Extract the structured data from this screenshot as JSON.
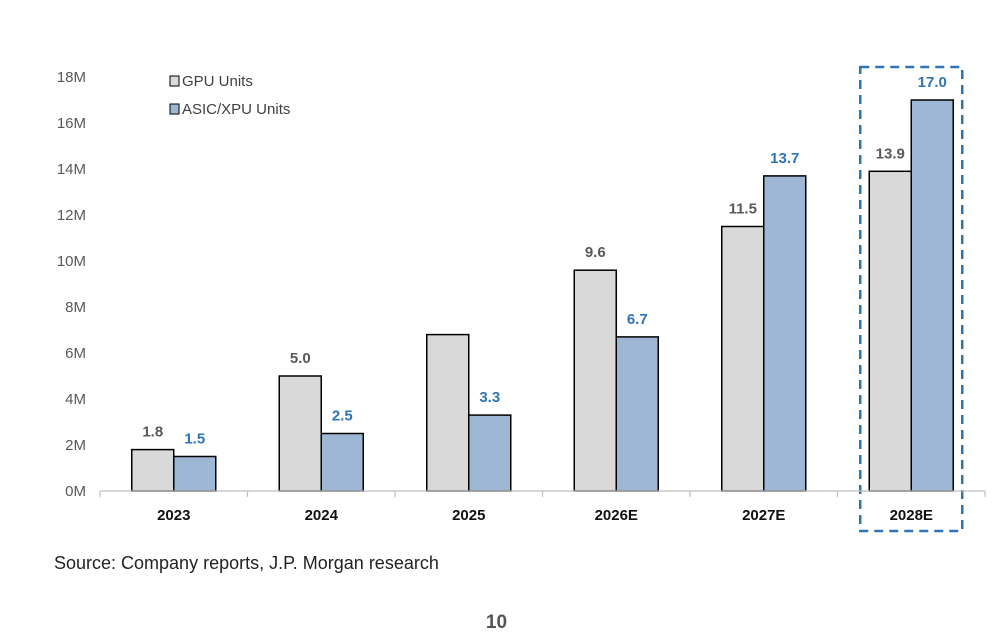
{
  "chart_data": {
    "type": "bar",
    "categories": [
      "2023",
      "2024",
      "2025",
      "2026E",
      "2027E",
      "2028E"
    ],
    "series": [
      {
        "name": "GPU Units",
        "color": "#d9d9d9",
        "label_color": "#595959",
        "values": [
          1.8,
          5.0,
          6.8,
          9.6,
          11.5,
          13.9
        ],
        "labels": [
          "1.8",
          "5.0",
          "",
          "9.6",
          "11.5",
          "13.9"
        ]
      },
      {
        "name": "ASIC/XPU Units",
        "color": "#9db7d5",
        "label_color": "#2e75b6",
        "values": [
          1.5,
          2.5,
          3.3,
          6.7,
          13.7,
          17.0
        ],
        "labels": [
          "1.5",
          "2.5",
          "3.3",
          "6.7",
          "13.7",
          "17.0"
        ]
      }
    ],
    "y_unit": "M",
    "ylim": [
      0,
      18
    ],
    "yticks": [
      "0M",
      "2M",
      "4M",
      "6M",
      "8M",
      "10M",
      "12M",
      "14M",
      "16M",
      "18M"
    ],
    "legend_position": "top-left",
    "highlight_category": "2028E",
    "highlight_color": "#2e75b6",
    "grid": false
  },
  "footer": {
    "source": "Source: Company reports, J.P. Morgan research",
    "page_number": "10"
  }
}
